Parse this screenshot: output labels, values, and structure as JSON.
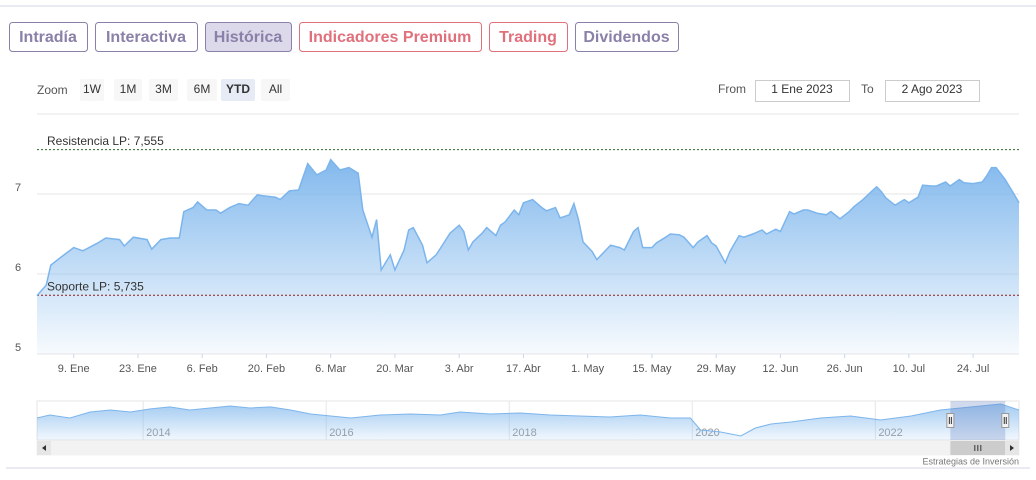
{
  "tabs": [
    {
      "label": "Intradía",
      "color": "#8a80a8"
    },
    {
      "label": "Interactiva",
      "color": "#8a80a8"
    },
    {
      "label": "Histórica",
      "color": "#8a80a8"
    },
    {
      "label": "Indicadores Premium",
      "color": "#e0707c"
    },
    {
      "label": "Trading",
      "color": "#e0707c"
    },
    {
      "label": "Dividendos",
      "color": "#8a80a8"
    }
  ],
  "selected_tab": 2,
  "zoom": {
    "label": "Zoom",
    "buttons": [
      "1W",
      "1M",
      "3M",
      "6M",
      "YTD",
      "All"
    ],
    "selected": 4
  },
  "range": {
    "from_label": "From",
    "from": "1 Ene 2023",
    "to_label": "To",
    "to": "2 Ago 2023"
  },
  "chart_data": {
    "type": "area",
    "color": "#7cb5ec",
    "x": [
      1,
      3,
      4,
      6,
      9,
      11,
      14,
      16,
      19,
      20,
      22,
      25,
      26,
      28,
      30,
      32,
      33,
      35,
      36,
      38,
      40,
      41,
      43,
      45,
      47,
      49,
      50,
      53,
      54,
      56,
      58,
      60,
      62,
      64,
      65,
      67,
      69,
      71,
      72,
      74,
      75,
      76,
      78,
      79,
      81,
      82,
      83,
      85,
      86,
      88,
      89,
      91,
      93,
      94,
      95,
      96,
      98,
      99,
      101,
      102,
      103,
      105,
      106,
      107,
      109,
      111,
      112,
      114,
      115,
      117,
      118,
      119,
      120,
      122,
      123,
      125,
      126,
      128,
      129,
      131,
      132,
      133,
      135,
      136,
      138,
      139,
      141,
      142,
      144,
      145,
      147,
      148,
      149,
      151,
      152,
      154,
      155,
      157,
      159,
      160,
      162,
      163,
      165,
      166,
      168,
      169,
      171,
      173,
      174,
      176,
      178,
      179,
      181,
      183,
      184,
      185,
      186,
      188,
      190,
      191,
      193,
      194,
      196,
      197,
      199,
      200,
      202,
      203,
      205,
      207,
      208,
      209,
      210,
      212,
      214,
      215
    ],
    "values": [
      5.73,
      5.86,
      6.11,
      6.2,
      6.33,
      6.29,
      6.38,
      6.45,
      6.43,
      6.35,
      6.46,
      6.43,
      6.31,
      6.43,
      6.45,
      6.45,
      6.78,
      6.83,
      6.9,
      6.8,
      6.8,
      6.76,
      6.83,
      6.88,
      6.86,
      6.99,
      6.98,
      6.96,
      6.93,
      7.04,
      7.05,
      7.38,
      7.24,
      7.3,
      7.43,
      7.3,
      7.33,
      7.26,
      6.8,
      6.46,
      6.68,
      6.05,
      6.24,
      6.05,
      6.3,
      6.55,
      6.58,
      6.36,
      6.14,
      6.24,
      6.33,
      6.51,
      6.61,
      6.53,
      6.3,
      6.4,
      6.51,
      6.58,
      6.48,
      6.61,
      6.65,
      6.8,
      6.74,
      6.89,
      6.93,
      6.83,
      6.79,
      6.83,
      6.7,
      6.74,
      6.88,
      6.68,
      6.4,
      6.28,
      6.18,
      6.3,
      6.36,
      6.33,
      6.3,
      6.53,
      6.58,
      6.33,
      6.33,
      6.39,
      6.46,
      6.5,
      6.49,
      6.46,
      6.33,
      6.4,
      6.48,
      6.39,
      6.35,
      6.14,
      6.28,
      6.48,
      6.46,
      6.5,
      6.55,
      6.5,
      6.56,
      6.53,
      6.78,
      6.75,
      6.8,
      6.8,
      6.76,
      6.74,
      6.78,
      6.69,
      6.78,
      6.84,
      6.93,
      7.04,
      7.09,
      7.03,
      6.95,
      6.86,
      6.93,
      6.89,
      6.96,
      7.11,
      7.1,
      7.1,
      7.15,
      7.1,
      7.18,
      7.14,
      7.13,
      7.15,
      7.23,
      7.33,
      7.33,
      7.18,
      6.99,
      6.89
    ],
    "xlim": [
      1,
      215
    ],
    "ylim": [
      5,
      8
    ],
    "yticks": [
      5,
      6,
      7
    ],
    "xticks": [
      {
        "value": 9,
        "label": "9. Ene"
      },
      {
        "value": 23,
        "label": "23. Ene"
      },
      {
        "value": 37,
        "label": "6. Feb"
      },
      {
        "value": 51,
        "label": "20. Feb"
      },
      {
        "value": 65,
        "label": "6. Mar"
      },
      {
        "value": 79,
        "label": "20. Mar"
      },
      {
        "value": 93,
        "label": "3. Abr"
      },
      {
        "value": 107,
        "label": "17. Abr"
      },
      {
        "value": 121,
        "label": "1. May"
      },
      {
        "value": 135,
        "label": "15. May"
      },
      {
        "value": 149,
        "label": "29. May"
      },
      {
        "value": 163,
        "label": "12. Jun"
      },
      {
        "value": 177,
        "label": "26. Jun"
      },
      {
        "value": 191,
        "label": "10. Jul"
      },
      {
        "value": 205,
        "label": "24. Jul"
      }
    ],
    "grid": true,
    "plot_lines": [
      {
        "label": "Resistencia LP: 7,555",
        "value": 7.555,
        "color": "#2e6b2e"
      },
      {
        "label": "Soporte LP: 5,735",
        "value": 5.735,
        "color": "#8b1c1c"
      }
    ],
    "navigator": {
      "color": "#7cb5ec",
      "x": [
        2012.84,
        2012.98,
        2013.2,
        2013.42,
        2013.64,
        2013.86,
        2014.07,
        2014.29,
        2014.51,
        2014.73,
        2014.95,
        2015.17,
        2015.39,
        2015.61,
        2015.83,
        2016.05,
        2016.27,
        2016.59,
        2016.92,
        2017.25,
        2017.46,
        2017.79,
        2018.12,
        2018.45,
        2018.77,
        2019.1,
        2019.43,
        2019.76,
        2019.98,
        2020.09,
        2020.31,
        2020.53,
        2020.69,
        2020.86,
        2021.08,
        2021.4,
        2021.73,
        2022.06,
        2022.39,
        2022.71,
        2022.93,
        2023.15,
        2023.37,
        2023.57
      ],
      "values": [
        6.26,
        6.56,
        6.26,
        6.87,
        7.08,
        6.87,
        7.18,
        7.39,
        7.08,
        7.28,
        7.49,
        7.28,
        7.39,
        7.08,
        6.67,
        6.46,
        6.26,
        6.56,
        6.67,
        6.56,
        6.87,
        6.67,
        6.77,
        6.56,
        6.46,
        6.36,
        6.56,
        6.26,
        6.26,
        5.03,
        4.82,
        4.41,
        5.23,
        5.64,
        5.85,
        6.26,
        6.46,
        6.05,
        6.46,
        7.08,
        7.28,
        7.49,
        7.69,
        7.08
      ],
      "xlim": [
        2012.84,
        2023.57
      ],
      "ylim": [
        4,
        8
      ],
      "xticks": [
        2014,
        2016,
        2018,
        2020,
        2022
      ],
      "selection": [
        2022.82,
        2023.42
      ]
    }
  },
  "credit": "Estrategias de Inversión"
}
